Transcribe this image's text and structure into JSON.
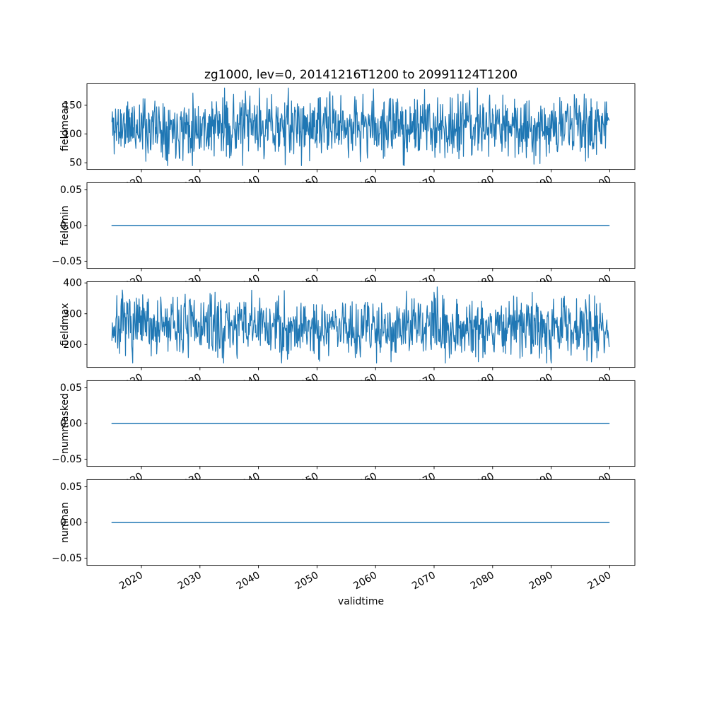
{
  "figure": {
    "title": "zg1000, lev=0, 20141216T1200 to 20991124T1200",
    "xlabel": "validtime",
    "line_color": "#1f77b4",
    "background": "#ffffff",
    "spine_color": "#000000",
    "xticks": [
      {
        "v": 2020,
        "label": "2020"
      },
      {
        "v": 2030,
        "label": "2030"
      },
      {
        "v": 2040,
        "label": "2040"
      },
      {
        "v": 2050,
        "label": "2050"
      },
      {
        "v": 2060,
        "label": "2060"
      },
      {
        "v": 2070,
        "label": "2070"
      },
      {
        "v": 2080,
        "label": "2080"
      },
      {
        "v": 2090,
        "label": "2090"
      },
      {
        "v": 2100,
        "label": "2100"
      }
    ]
  },
  "chart_data": [
    {
      "type": "line",
      "ylabel": "fieldmean",
      "xlim": [
        2010.7,
        2104.3
      ],
      "ylim": [
        38,
        188
      ],
      "yticks": [
        {
          "v": 50,
          "label": "50"
        },
        {
          "v": 100,
          "label": "100"
        },
        {
          "v": 150,
          "label": "150"
        }
      ],
      "series": {
        "kind": "noise",
        "mean": 113,
        "std": 27,
        "min": 45,
        "max": 180,
        "n": 1100,
        "seed": 11,
        "x_start": 2014.96,
        "x_end": 2099.9
      }
    },
    {
      "type": "line",
      "ylabel": "fieldmin",
      "xlim": [
        2010.7,
        2104.3
      ],
      "ylim": [
        -0.0605,
        0.0605
      ],
      "yticks": [
        {
          "v": -0.05,
          "label": "−0.05"
        },
        {
          "v": 0,
          "label": "0.00"
        },
        {
          "v": 0.05,
          "label": "0.05"
        }
      ],
      "series": {
        "kind": "constant",
        "value": 0,
        "x_start": 2014.96,
        "x_end": 2099.9
      }
    },
    {
      "type": "line",
      "ylabel": "fieldmax",
      "xlim": [
        2010.7,
        2104.3
      ],
      "ylim": [
        125,
        405
      ],
      "yticks": [
        {
          "v": 200,
          "label": "200"
        },
        {
          "v": 300,
          "label": "300"
        },
        {
          "v": 400,
          "label": "400"
        }
      ],
      "series": {
        "kind": "noise",
        "mean": 258,
        "std": 50,
        "min": 140,
        "max": 400,
        "n": 1100,
        "seed": 7,
        "x_start": 2014.96,
        "x_end": 2099.9
      }
    },
    {
      "type": "line",
      "ylabel": "nummasked",
      "xlim": [
        2010.7,
        2104.3
      ],
      "ylim": [
        -0.0605,
        0.0605
      ],
      "yticks": [
        {
          "v": -0.05,
          "label": "−0.05"
        },
        {
          "v": 0,
          "label": "0.00"
        },
        {
          "v": 0.05,
          "label": "0.05"
        }
      ],
      "series": {
        "kind": "constant",
        "value": 0,
        "x_start": 2014.96,
        "x_end": 2099.9
      }
    },
    {
      "type": "line",
      "ylabel": "numnan",
      "xlim": [
        2010.7,
        2104.3
      ],
      "ylim": [
        -0.0605,
        0.0605
      ],
      "yticks": [
        {
          "v": -0.05,
          "label": "−0.05"
        },
        {
          "v": 0,
          "label": "0.00"
        },
        {
          "v": 0.05,
          "label": "0.05"
        }
      ],
      "series": {
        "kind": "constant",
        "value": 0,
        "x_start": 2014.96,
        "x_end": 2099.9
      }
    }
  ]
}
